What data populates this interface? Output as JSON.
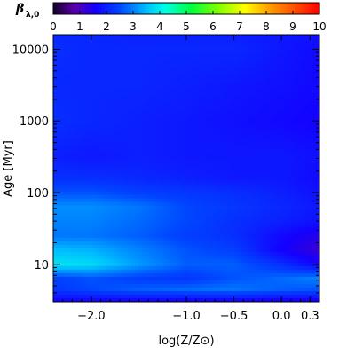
{
  "chart_data": {
    "type": "heatmap",
    "title": "",
    "xlabel": "log(Z/Z⊙)",
    "ylabel": "Age [Myr]",
    "x_range": [
      -2.4,
      0.4
    ],
    "x_ticks": [
      -2.0,
      -1.0,
      -0.5,
      0.0,
      0.3
    ],
    "x_tick_labels": [
      "−2.0",
      "−1.0",
      "−0.5",
      "0.0",
      "0.3"
    ],
    "y_scale": "log",
    "y_range": [
      3,
      16000
    ],
    "y_ticks": [
      10,
      100,
      1000,
      10000
    ],
    "y_tick_labels": [
      "10",
      "100",
      "1000",
      "10000"
    ],
    "colorbar": {
      "label_symbol": "β",
      "label_subscript": "λ,0",
      "range": [
        0,
        10
      ],
      "ticks": [
        0,
        1,
        2,
        3,
        4,
        5,
        6,
        7,
        8,
        9,
        10
      ],
      "tick_labels": [
        "0",
        "1",
        "2",
        "3",
        "4",
        "5",
        "6",
        "7",
        "8",
        "9",
        "10"
      ],
      "colormap": "rainbow (black-purple-blue-cyan-green-yellow-red)",
      "placement": "top"
    },
    "x_samples": [
      -2.4,
      -2.0,
      -1.5,
      -1.0,
      -0.5,
      0.0,
      0.4
    ],
    "log_age_samples": [
      0.5,
      0.65,
      0.8,
      1.0,
      1.2,
      1.4,
      1.6,
      1.8,
      2.0,
      2.2,
      2.5,
      3.0,
      3.5,
      4.0,
      4.2
    ],
    "values": [
      [
        1.7,
        1.7,
        1.7,
        1.7,
        1.7,
        1.6,
        1.6
      ],
      [
        2.3,
        2.5,
        2.7,
        2.8,
        2.9,
        2.7,
        2.6
      ],
      [
        2.4,
        2.6,
        2.4,
        2.3,
        2.6,
        2.8,
        3.0
      ],
      [
        3.9,
        3.8,
        3.2,
        2.7,
        2.7,
        2.2,
        1.6
      ],
      [
        3.5,
        3.4,
        3.0,
        2.6,
        2.4,
        1.6,
        1.2
      ],
      [
        2.9,
        2.9,
        2.7,
        2.4,
        2.2,
        1.7,
        1.4
      ],
      [
        3.0,
        3.0,
        2.8,
        2.5,
        2.2,
        2.0,
        1.8
      ],
      [
        3.1,
        3.1,
        2.9,
        2.5,
        2.3,
        2.1,
        1.9
      ],
      [
        2.6,
        2.6,
        2.4,
        2.3,
        2.2,
        2.0,
        1.8
      ],
      [
        2.2,
        2.2,
        2.1,
        2.0,
        1.9,
        1.9,
        1.7
      ],
      [
        2.0,
        1.9,
        2.0,
        1.9,
        1.9,
        1.9,
        1.8
      ],
      [
        2.2,
        2.1,
        2.0,
        1.9,
        1.8,
        1.7,
        1.6
      ],
      [
        2.1,
        2.1,
        2.1,
        2.0,
        1.9,
        1.8,
        1.7
      ],
      [
        2.2,
        2.1,
        2.1,
        2.1,
        2.1,
        1.9,
        1.7
      ],
      [
        2.1,
        2.1,
        2.0,
        2.0,
        2.0,
        1.9,
        1.8
      ]
    ],
    "grid": false,
    "legend": "none"
  }
}
